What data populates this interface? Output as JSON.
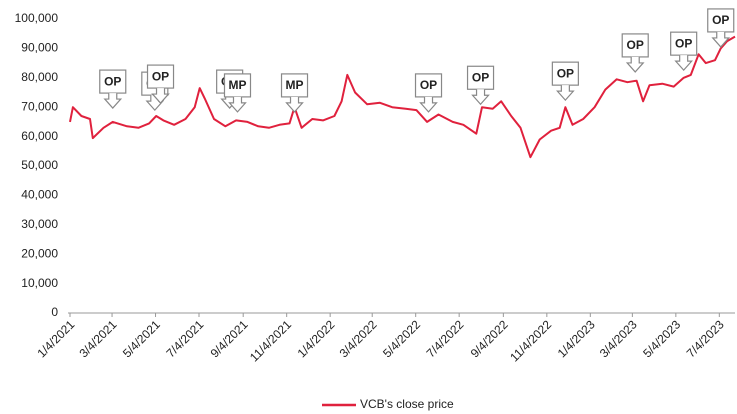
{
  "chart_data": {
    "type": "line",
    "x": [
      "2021-01-04",
      "2021-01-08",
      "2021-01-20",
      "2021-02-01",
      "2021-02-05",
      "2021-02-20",
      "2021-03-05",
      "2021-03-25",
      "2021-04-10",
      "2021-04-25",
      "2021-05-05",
      "2021-05-15",
      "2021-05-30",
      "2021-06-15",
      "2021-06-28",
      "2021-07-05",
      "2021-07-12",
      "2021-07-25",
      "2021-08-10",
      "2021-08-25",
      "2021-09-10",
      "2021-09-25",
      "2021-10-10",
      "2021-10-25",
      "2021-11-08",
      "2021-11-15",
      "2021-11-25",
      "2021-12-10",
      "2021-12-25",
      "2022-01-10",
      "2022-01-20",
      "2022-01-28",
      "2022-02-08",
      "2022-02-25",
      "2022-03-15",
      "2022-04-01",
      "2022-04-20",
      "2022-05-05",
      "2022-05-20",
      "2022-06-05",
      "2022-06-25",
      "2022-07-10",
      "2022-07-28",
      "2022-08-05",
      "2022-08-20",
      "2022-09-01",
      "2022-09-15",
      "2022-09-28",
      "2022-10-12",
      "2022-10-25",
      "2022-11-10",
      "2022-11-22",
      "2022-11-30",
      "2022-12-10",
      "2022-12-25",
      "2023-01-10",
      "2023-01-25",
      "2023-02-10",
      "2023-02-25",
      "2023-03-10",
      "2023-03-19",
      "2023-03-28",
      "2023-04-15",
      "2023-05-01",
      "2023-05-15",
      "2023-05-25",
      "2023-06-05",
      "2023-06-15",
      "2023-06-28",
      "2023-07-06",
      "2023-07-15",
      "2023-07-26"
    ],
    "series": [
      {
        "name": "VCB's close price",
        "color": "#e0213d",
        "values": [
          65000,
          70000,
          67000,
          66000,
          59500,
          63000,
          65000,
          63500,
          63000,
          64500,
          67000,
          65500,
          64000,
          66000,
          70000,
          76500,
          73000,
          66000,
          63500,
          65500,
          65000,
          63500,
          63000,
          64000,
          64500,
          70000,
          63000,
          66000,
          65500,
          67000,
          72000,
          81000,
          75000,
          71000,
          71500,
          70000,
          69500,
          69000,
          65000,
          67500,
          65000,
          64000,
          61000,
          70000,
          69500,
          72000,
          67000,
          63000,
          53000,
          59000,
          62000,
          63000,
          70000,
          64000,
          66000,
          70000,
          76000,
          79500,
          78500,
          79000,
          72000,
          77500,
          78000,
          77000,
          80000,
          81000,
          88000,
          85000,
          86000,
          90000,
          92500,
          94000
        ]
      }
    ],
    "xlim": [
      "2021-01-04",
      "2023-07-26"
    ],
    "xticks": [
      {
        "value": "2021-01-04",
        "label": "1/4/2021"
      },
      {
        "value": "2021-03-04",
        "label": "3/4/2021"
      },
      {
        "value": "2021-05-04",
        "label": "5/4/2021"
      },
      {
        "value": "2021-07-04",
        "label": "7/4/2021"
      },
      {
        "value": "2021-09-04",
        "label": "9/4/2021"
      },
      {
        "value": "2021-11-04",
        "label": "11/4/2021"
      },
      {
        "value": "2022-01-04",
        "label": "1/4/2022"
      },
      {
        "value": "2022-03-04",
        "label": "3/4/2022"
      },
      {
        "value": "2022-05-04",
        "label": "5/4/2022"
      },
      {
        "value": "2022-07-04",
        "label": "7/4/2022"
      },
      {
        "value": "2022-09-04",
        "label": "9/4/2022"
      },
      {
        "value": "2022-11-04",
        "label": "11/4/2022"
      },
      {
        "value": "2023-01-04",
        "label": "1/4/2023"
      },
      {
        "value": "2023-03-04",
        "label": "3/4/2023"
      },
      {
        "value": "2023-05-04",
        "label": "5/4/2023"
      },
      {
        "value": "2023-07-04",
        "label": "7/4/2023"
      }
    ],
    "ylim": [
      0,
      100000
    ],
    "yticks": [
      0,
      {
        "value": 10000,
        "label": "10,000"
      },
      {
        "value": 20000,
        "label": "20,000"
      },
      {
        "value": 30000,
        "label": "30,000"
      },
      {
        "value": 40000,
        "label": "40,000"
      },
      {
        "value": 50000,
        "label": "50,000"
      },
      {
        "value": 60000,
        "label": "60,000"
      },
      {
        "value": 70000,
        "label": "70,000"
      },
      {
        "value": 80000,
        "label": "80,000"
      },
      {
        "value": 90000,
        "label": "90,000"
      },
      {
        "value": 100000,
        "label": "100,000"
      }
    ],
    "annotations": [
      {
        "text": "OP",
        "x": "2021-03-05",
        "y": 69700
      },
      {
        "text": "OP",
        "x": "2021-05-03",
        "y": 69000
      },
      {
        "text": "OP",
        "x": "2021-05-11",
        "y": 71400
      },
      {
        "text": "OP",
        "x": "2021-08-16",
        "y": 69700
      },
      {
        "text": "MP",
        "x": "2021-08-27",
        "y": 68400
      },
      {
        "text": "MP",
        "x": "2021-11-15",
        "y": 68400
      },
      {
        "text": "OP",
        "x": "2022-05-22",
        "y": 68400
      },
      {
        "text": "OP",
        "x": "2022-08-03",
        "y": 71000
      },
      {
        "text": "OP",
        "x": "2022-11-30",
        "y": 72400
      },
      {
        "text": "OP",
        "x": "2023-03-08",
        "y": 82000
      },
      {
        "text": "OP",
        "x": "2023-05-15",
        "y": 82600
      },
      {
        "text": "OP",
        "x": "2023-07-06",
        "y": 90500
      }
    ],
    "legend": "bottom"
  }
}
